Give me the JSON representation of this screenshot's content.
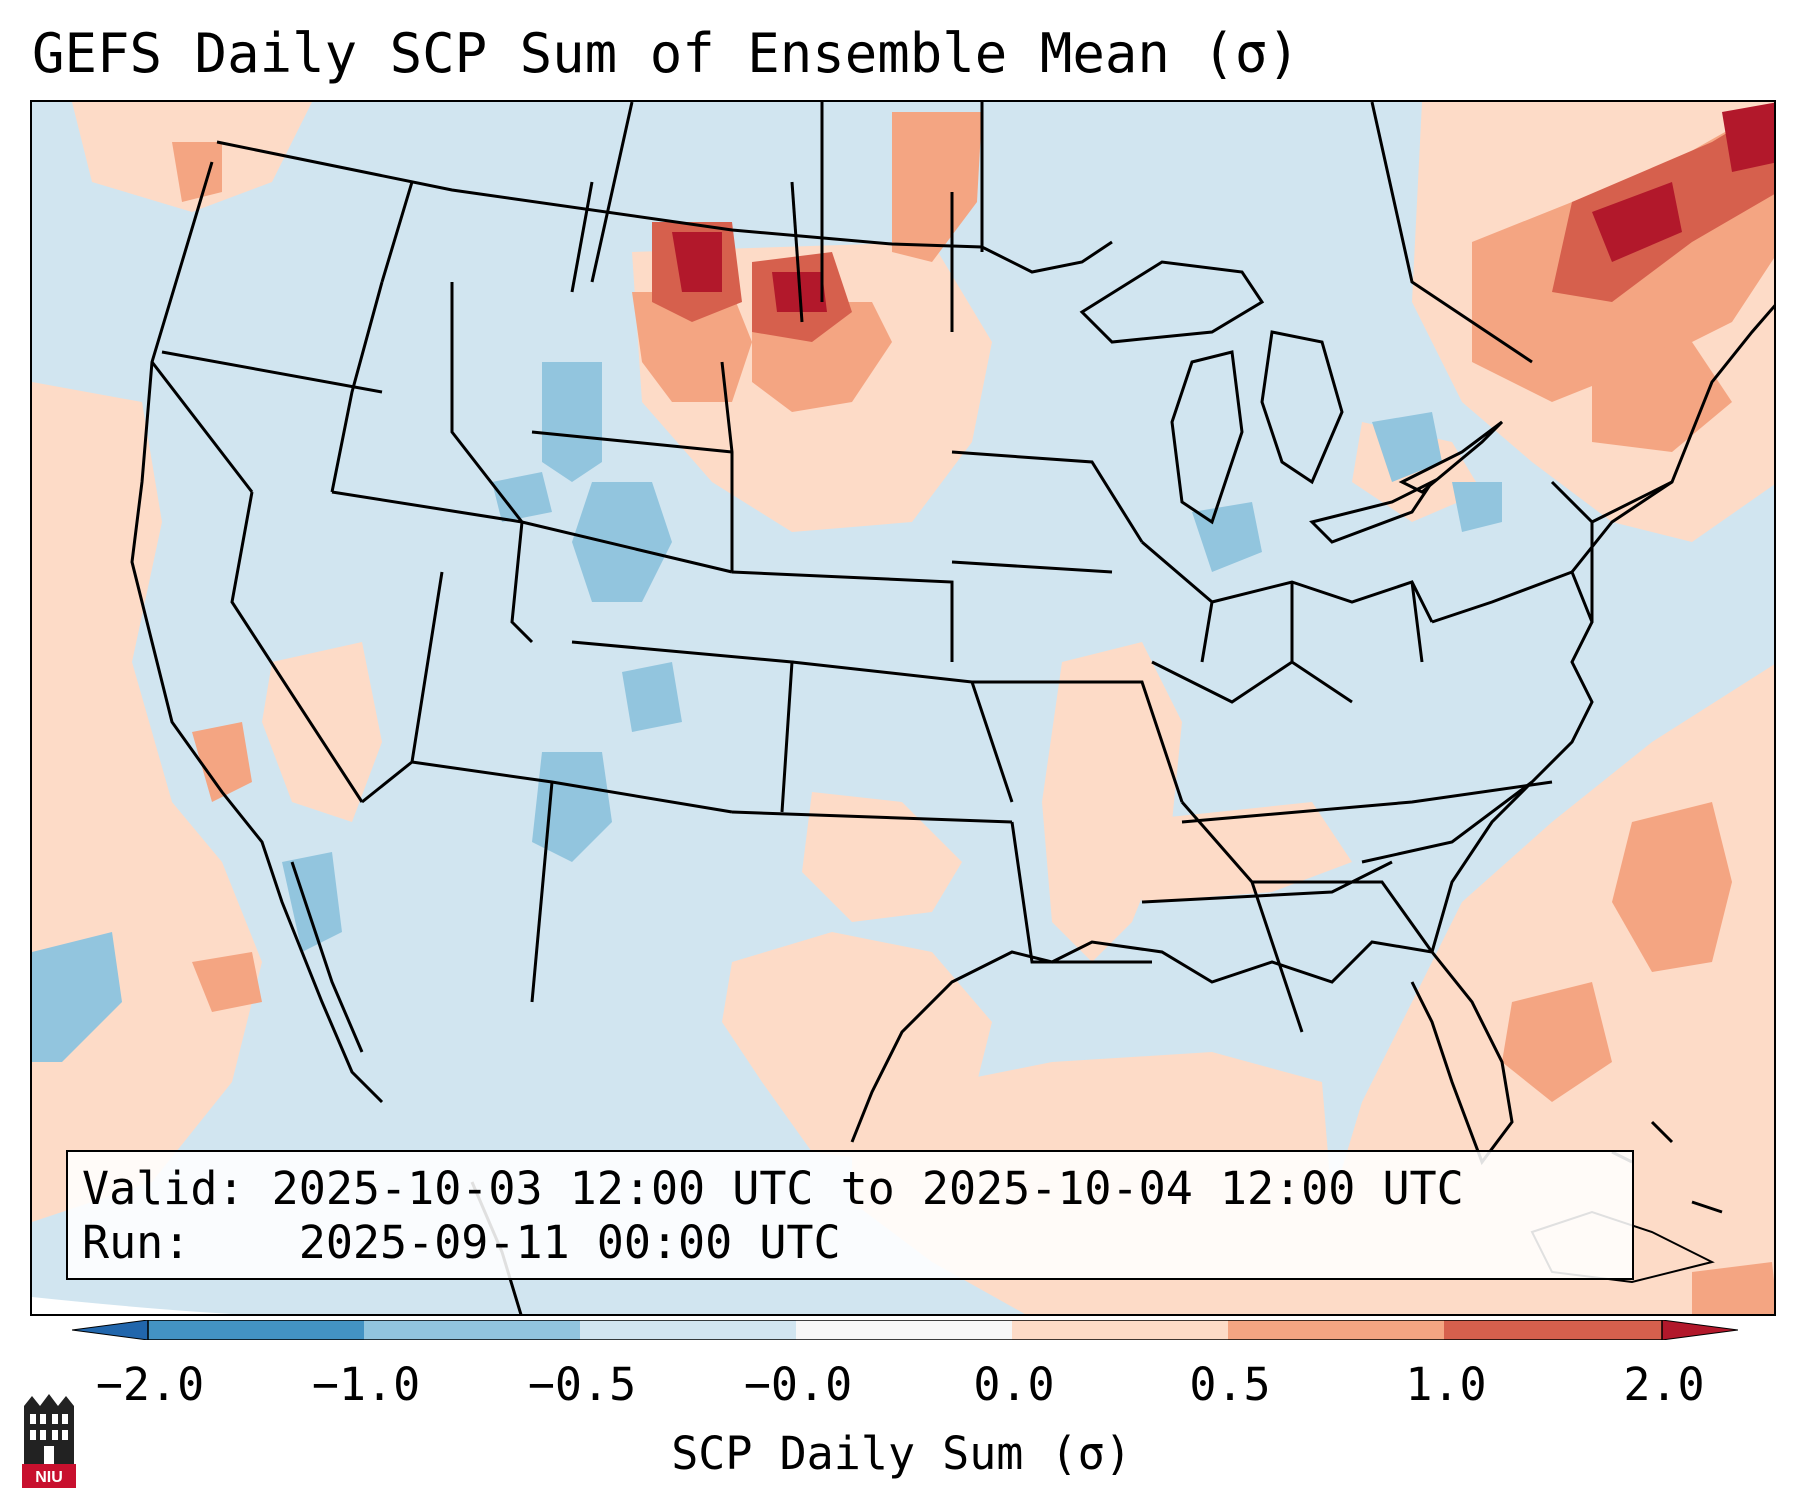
{
  "title": "GEFS Daily SCP Sum of Ensemble Mean (σ)",
  "info": {
    "valid_label": "Valid:",
    "valid_value": "2025-10-03 12:00 UTC to 2025-10-04 12:00 UTC",
    "run_label": "Run:",
    "run_value": "2025-09-11 00:00 UTC"
  },
  "colorbar": {
    "label": "SCP Daily Sum (σ)",
    "ticks": [
      "−2.0",
      "−1.0",
      "−0.5",
      "−0.0",
      "0.0",
      "0.5",
      "1.0",
      "2.0"
    ],
    "colors": [
      "#2166ac",
      "#4393c3",
      "#92c5de",
      "#d1e5f0",
      "#f7f7f7",
      "#fddbc7",
      "#f4a582",
      "#d6604d",
      "#b2182b"
    ]
  },
  "logo": {
    "text": "NIU",
    "color": "#c8102e"
  },
  "map": {
    "background_color": "#d1e5f0",
    "land_outline_color": "#000000"
  }
}
